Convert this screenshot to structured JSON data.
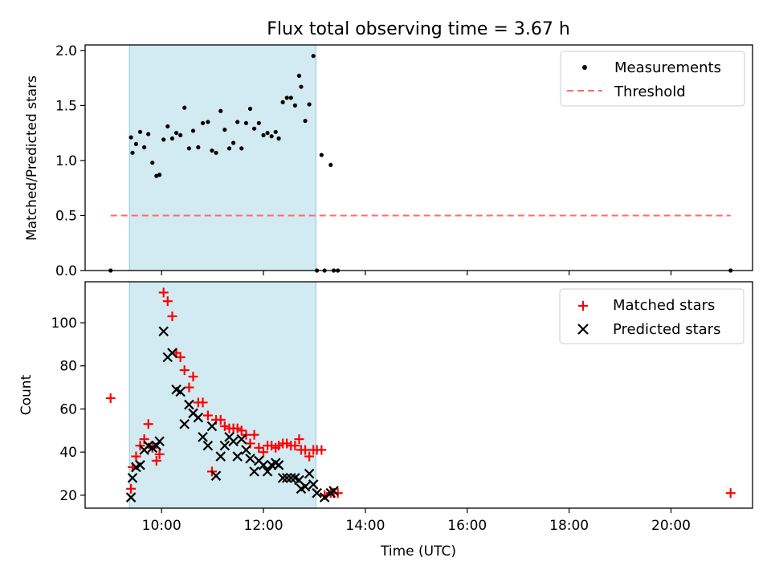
{
  "figure": {
    "title": "Flux total observing time = 3.67 h"
  },
  "chart_data": [
    {
      "type": "scatter",
      "panel": "top",
      "ylabel": "Matched/Predicted stars",
      "ylim": [
        0,
        2.05
      ],
      "xlim": [
        8.5,
        21.6
      ],
      "y_ticks": [
        "0.0",
        "0.5",
        "1.0",
        "1.5",
        "2.0"
      ],
      "y_tick_values": [
        0,
        0.5,
        1.0,
        1.5,
        2.0
      ],
      "x_tick_values": [
        10,
        12,
        14,
        16,
        18,
        20
      ],
      "shaded_interval": {
        "x": [
          9.37,
          13.03
        ],
        "color": "#add8e6"
      },
      "threshold": {
        "name": "Threshold",
        "value": 0.5,
        "x": [
          9.0,
          21.17
        ],
        "color": "#ff6b6b"
      },
      "legend": {
        "placement": "upper right",
        "entries": [
          "Measurements",
          "Threshold"
        ]
      },
      "series": [
        {
          "name": "Measurements",
          "color": "#000000",
          "x": [
            9.0,
            9.4,
            9.43,
            9.5,
            9.58,
            9.66,
            9.74,
            9.82,
            9.9,
            9.96,
            10.04,
            10.12,
            10.21,
            10.29,
            10.37,
            10.45,
            10.54,
            10.62,
            10.72,
            10.81,
            10.91,
            10.99,
            11.07,
            11.16,
            11.24,
            11.33,
            11.41,
            11.49,
            11.57,
            11.66,
            11.74,
            11.82,
            11.91,
            12.0,
            12.08,
            12.16,
            12.24,
            12.3,
            12.38,
            12.46,
            12.54,
            12.62,
            12.7,
            12.74,
            12.82,
            12.9,
            12.98,
            13.05,
            13.14,
            13.2,
            13.32,
            13.38,
            13.46,
            21.17
          ],
          "y": [
            0.0,
            1.21,
            1.07,
            1.15,
            1.26,
            1.12,
            1.24,
            0.98,
            0.86,
            0.87,
            1.19,
            1.31,
            1.2,
            1.25,
            1.23,
            1.48,
            1.11,
            1.27,
            1.12,
            1.34,
            1.35,
            1.09,
            1.07,
            1.45,
            1.28,
            1.11,
            1.16,
            1.35,
            1.11,
            1.34,
            1.47,
            1.29,
            1.34,
            1.23,
            1.25,
            1.22,
            1.26,
            1.2,
            1.53,
            1.57,
            1.57,
            1.5,
            1.77,
            1.67,
            1.36,
            1.51,
            1.95,
            0.0,
            1.05,
            0.0,
            0.96,
            0.0,
            0.0,
            0.0
          ]
        }
      ]
    },
    {
      "type": "scatter",
      "panel": "bottom",
      "xlabel": "Time (UTC)",
      "ylabel": "Count",
      "ylim": [
        14,
        119
      ],
      "xlim": [
        8.5,
        21.6
      ],
      "y_ticks": [
        "20",
        "40",
        "60",
        "80",
        "100"
      ],
      "y_tick_values": [
        20,
        40,
        60,
        80,
        100
      ],
      "x_ticks": [
        "10:00",
        "12:00",
        "14:00",
        "16:00",
        "18:00",
        "20:00"
      ],
      "x_tick_values": [
        10,
        12,
        14,
        16,
        18,
        20
      ],
      "shaded_interval": {
        "x": [
          9.37,
          13.03
        ],
        "color": "#add8e6"
      },
      "legend": {
        "placement": "upper right",
        "entries": [
          "Matched stars",
          "Predicted stars"
        ]
      },
      "series": [
        {
          "name": "Matched stars",
          "marker": "plus",
          "color": "#ff0000",
          "x": [
            9.0,
            9.4,
            9.43,
            9.5,
            9.58,
            9.66,
            9.74,
            9.82,
            9.9,
            9.96,
            10.04,
            10.12,
            10.21,
            10.29,
            10.37,
            10.45,
            10.54,
            10.62,
            10.72,
            10.81,
            10.91,
            10.99,
            11.07,
            11.16,
            11.24,
            11.33,
            11.41,
            11.49,
            11.57,
            11.66,
            11.74,
            11.82,
            11.91,
            12.0,
            12.08,
            12.16,
            12.24,
            12.3,
            12.38,
            12.46,
            12.54,
            12.62,
            12.7,
            12.74,
            12.82,
            12.9,
            12.98,
            13.05,
            13.14,
            13.2,
            13.32,
            13.38,
            13.46,
            21.17
          ],
          "y": [
            65,
            23,
            33,
            38,
            43,
            46,
            53,
            42,
            36,
            39,
            114,
            110,
            103,
            86,
            84,
            78,
            70,
            75,
            63,
            63,
            57,
            31,
            55,
            55,
            52,
            51,
            51,
            51,
            50,
            48,
            44,
            48,
            42,
            40,
            43,
            43,
            42,
            43,
            44,
            44,
            43,
            43,
            46,
            41,
            41,
            38,
            41,
            41,
            41,
            20,
            21,
            21,
            21,
            21
          ]
        },
        {
          "name": "Predicted stars",
          "marker": "x",
          "color": "#000000",
          "x": [
            9.4,
            9.43,
            9.5,
            9.58,
            9.66,
            9.74,
            9.82,
            9.9,
            9.96,
            10.04,
            10.12,
            10.21,
            10.29,
            10.37,
            10.45,
            10.54,
            10.62,
            10.72,
            10.81,
            10.91,
            10.99,
            11.07,
            11.16,
            11.24,
            11.33,
            11.41,
            11.49,
            11.57,
            11.66,
            11.74,
            11.82,
            11.91,
            12.0,
            12.08,
            12.16,
            12.24,
            12.3,
            12.38,
            12.46,
            12.54,
            12.62,
            12.7,
            12.74,
            12.82,
            12.9,
            12.98,
            13.05,
            13.2,
            13.32,
            13.38
          ],
          "y": [
            19,
            28,
            33,
            34,
            41,
            43,
            42,
            43,
            45,
            96,
            84,
            86,
            69,
            68,
            53,
            62,
            58,
            56,
            47,
            43,
            52,
            29,
            38,
            43,
            47,
            45,
            38,
            46,
            41,
            37,
            31,
            36,
            34,
            31,
            34,
            35,
            34,
            28,
            28,
            28,
            28,
            27,
            23,
            24,
            30,
            25,
            21,
            19,
            21,
            22
          ]
        }
      ]
    }
  ]
}
